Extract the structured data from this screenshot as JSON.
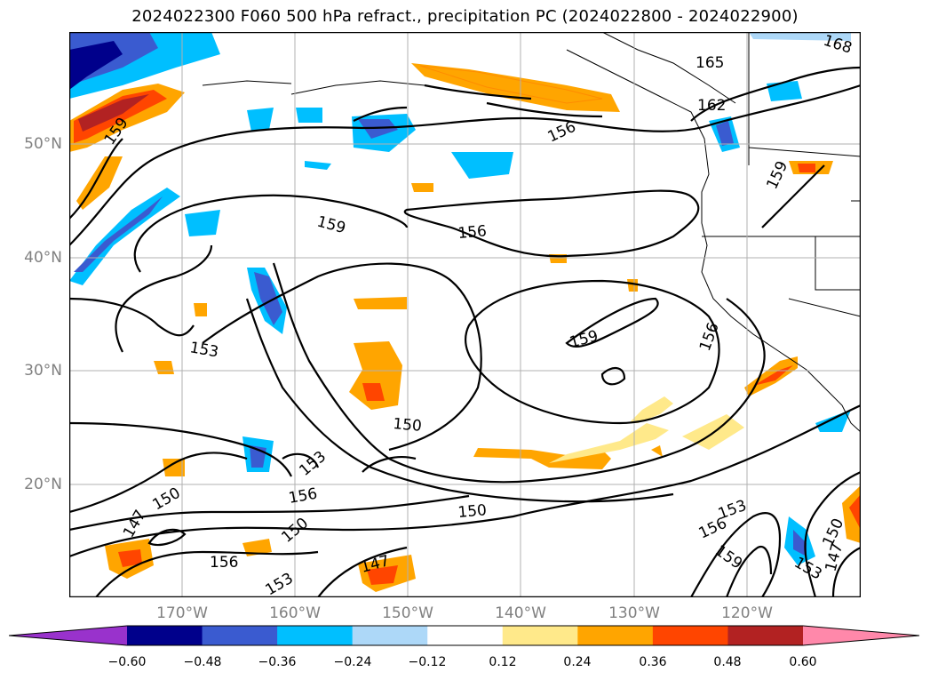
{
  "title": "2024022300 F060 500 hPa refract., precipitation PC (2024022800 - 2024022900)",
  "lat_labels": [
    "50°N",
    "40°N",
    "30°N",
    "20°N"
  ],
  "lon_labels": [
    "170°W",
    "160°W",
    "150°W",
    "140°W",
    "130°W",
    "120°W"
  ],
  "colorbar": {
    "ticks": [
      "−0.60",
      "−0.48",
      "−0.36",
      "−0.24",
      "−0.12",
      "0.12",
      "0.24",
      "0.36",
      "0.48",
      "0.60"
    ],
    "colors": [
      "#9932cc",
      "#00008b",
      "#3a5bd0",
      "#00bfff",
      "#add8f8",
      "#ffffff",
      "#ffe98a",
      "#ffa500",
      "#ff4500",
      "#b22222",
      "#ff88aa"
    ]
  },
  "contour_labels": [
    {
      "text": "159"
    },
    {
      "text": "165"
    },
    {
      "text": "168"
    },
    {
      "text": "162"
    },
    {
      "text": "156"
    },
    {
      "text": "159"
    },
    {
      "text": "159"
    },
    {
      "text": "156"
    },
    {
      "text": "153"
    },
    {
      "text": "159"
    },
    {
      "text": "156"
    },
    {
      "text": "150"
    },
    {
      "text": "153"
    },
    {
      "text": "156"
    },
    {
      "text": "150"
    },
    {
      "text": "150"
    },
    {
      "text": "147"
    },
    {
      "text": "156"
    },
    {
      "text": "150"
    },
    {
      "text": "147"
    },
    {
      "text": "153"
    },
    {
      "text": "153"
    },
    {
      "text": "156"
    },
    {
      "text": "159"
    },
    {
      "text": "153"
    },
    {
      "text": "150"
    },
    {
      "text": "147"
    }
  ]
}
